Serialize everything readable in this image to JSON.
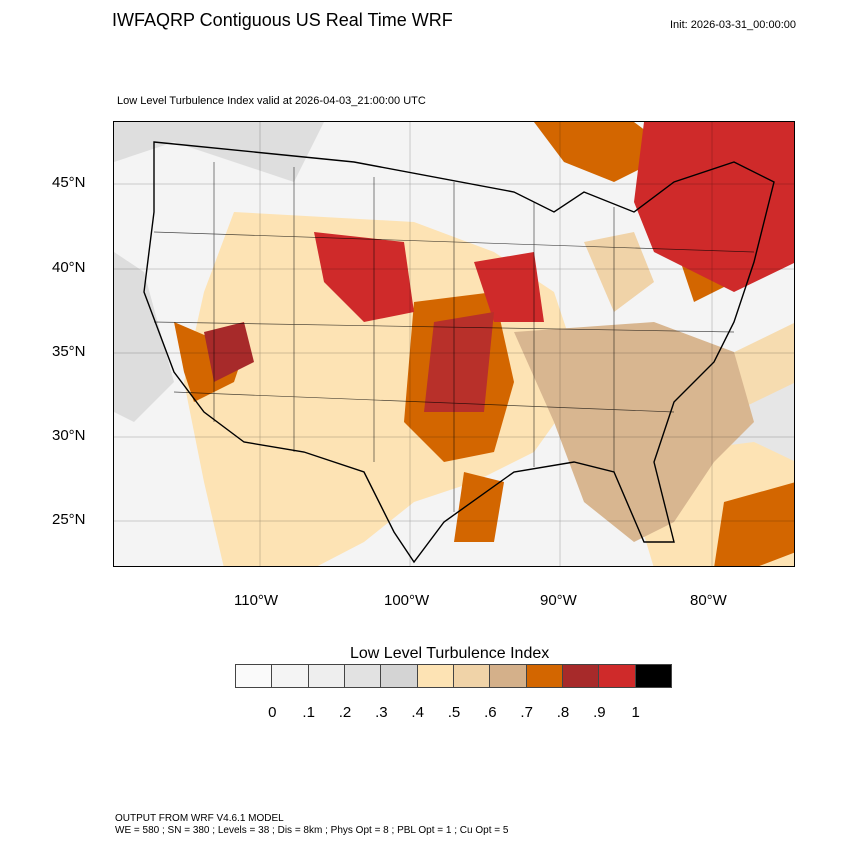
{
  "header": {
    "title": "IWFAQRP Contiguous US Real Time WRF",
    "init": "Init: 2026-03-31_00:00:00",
    "subtitle": "Low Level Turbulence Index valid at 2026-04-03_21:00:00 UTC"
  },
  "map": {
    "region": "Contiguous US",
    "lat_labels": [
      "45°N",
      "40°N",
      "35°N",
      "30°N",
      "25°N"
    ],
    "lon_labels": [
      "110°W",
      "100°W",
      "90°W",
      "80°W"
    ]
  },
  "legend": {
    "title": "Low Level Turbulence Index",
    "colors": [
      "#fafafa",
      "#f4f4f4",
      "#eeeeee",
      "#e2e2e2",
      "#d4d4d4",
      "#fde3b4",
      "#f0d3a8",
      "#d4b08a",
      "#d36600",
      "#a72a2a",
      "#cf2a2a",
      "#000000"
    ],
    "labels": [
      "0",
      ".1",
      ".2",
      ".3",
      ".4",
      ".5",
      ".6",
      ".7",
      ".8",
      ".9",
      "1"
    ]
  },
  "footer": {
    "line1": "OUTPUT FROM WRF V4.6.1 MODEL",
    "line2": "WE = 580 ; SN = 380 ; Levels = 38 ; Dis = 8km ; Phys Opt = 8 ; PBL Opt = 1 ; Cu Opt = 5"
  }
}
